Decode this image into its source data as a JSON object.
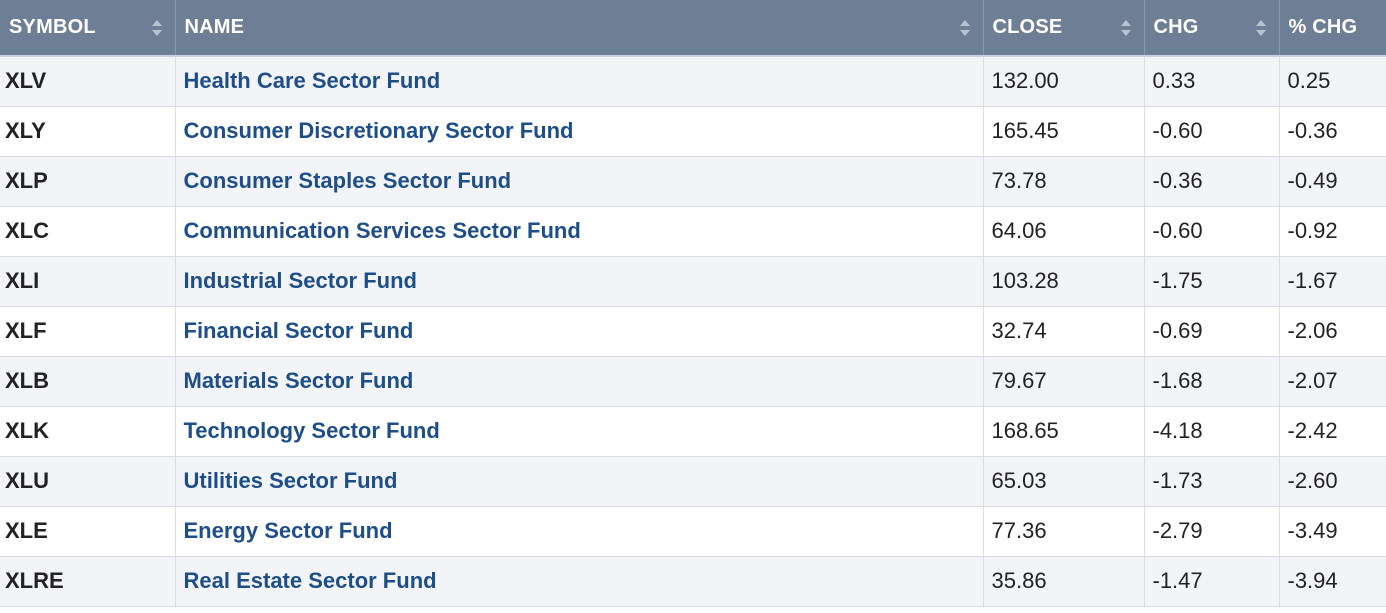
{
  "table": {
    "headers": {
      "symbol": "SYMBOL",
      "name": "NAME",
      "close": "CLOSE",
      "chg": "CHG",
      "pct_chg": "% CHG"
    },
    "rows": [
      {
        "symbol": "XLV",
        "name": "Health Care Sector Fund",
        "close": "132.00",
        "chg": "0.33",
        "pct_chg": "0.25"
      },
      {
        "symbol": "XLY",
        "name": "Consumer Discretionary Sector Fund",
        "close": "165.45",
        "chg": "-0.60",
        "pct_chg": "-0.36"
      },
      {
        "symbol": "XLP",
        "name": "Consumer Staples Sector Fund",
        "close": "73.78",
        "chg": "-0.36",
        "pct_chg": "-0.49"
      },
      {
        "symbol": "XLC",
        "name": "Communication Services Sector Fund",
        "close": "64.06",
        "chg": "-0.60",
        "pct_chg": "-0.92"
      },
      {
        "symbol": "XLI",
        "name": "Industrial Sector Fund",
        "close": "103.28",
        "chg": "-1.75",
        "pct_chg": "-1.67"
      },
      {
        "symbol": "XLF",
        "name": "Financial Sector Fund",
        "close": "32.74",
        "chg": "-0.69",
        "pct_chg": "-2.06"
      },
      {
        "symbol": "XLB",
        "name": "Materials Sector Fund",
        "close": "79.67",
        "chg": "-1.68",
        "pct_chg": "-2.07"
      },
      {
        "symbol": "XLK",
        "name": "Technology Sector Fund",
        "close": "168.65",
        "chg": "-4.18",
        "pct_chg": "-2.42"
      },
      {
        "symbol": "XLU",
        "name": "Utilities Sector Fund",
        "close": "65.03",
        "chg": "-1.73",
        "pct_chg": "-2.60"
      },
      {
        "symbol": "XLE",
        "name": "Energy Sector Fund",
        "close": "77.36",
        "chg": "-2.79",
        "pct_chg": "-3.49"
      },
      {
        "symbol": "XLRE",
        "name": "Real Estate Sector Fund",
        "close": "35.86",
        "chg": "-1.47",
        "pct_chg": "-3.94"
      }
    ]
  },
  "icons": {
    "sort": "sort-icon"
  },
  "colors": {
    "header_bg": "#6e7f95",
    "link": "#1d4e89",
    "row_alt": "#f2f4f7"
  }
}
